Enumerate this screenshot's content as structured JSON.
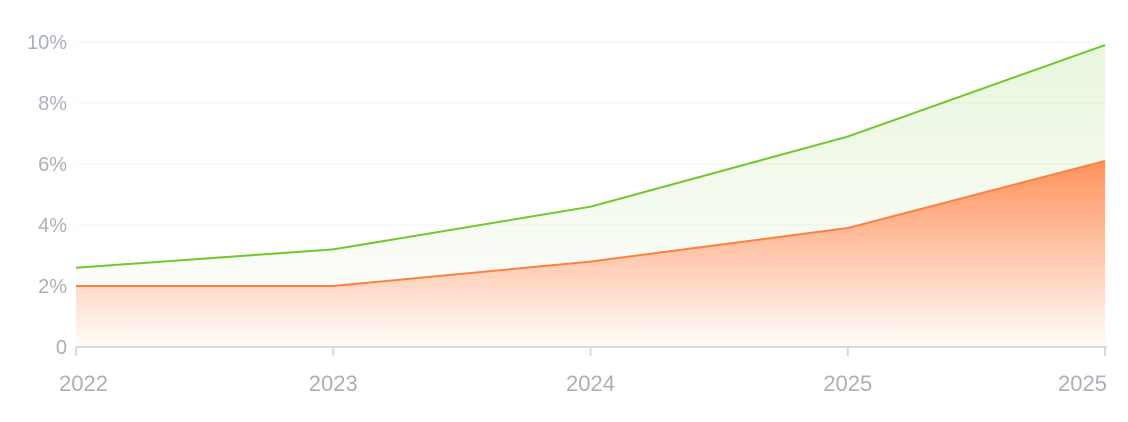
{
  "chart_data": {
    "type": "area",
    "categories": [
      "2022",
      "2023",
      "2024",
      "2025",
      "2025"
    ],
    "series": [
      {
        "values": [
          2.0,
          2.0,
          2.8,
          3.9,
          6.1
        ],
        "color": "#ff7f3f",
        "fill": "gradient-orange"
      },
      {
        "values": [
          2.6,
          3.2,
          4.6,
          6.9,
          9.9
        ],
        "color": "#72c72a",
        "fill": "light-green"
      }
    ],
    "y_ticks": [
      "0",
      "2%",
      "4%",
      "6%",
      "8%",
      "10%"
    ],
    "y_tick_values": [
      0,
      2,
      4,
      6,
      8,
      10
    ],
    "ylim": [
      0,
      10
    ],
    "grid": true,
    "legend": false
  }
}
